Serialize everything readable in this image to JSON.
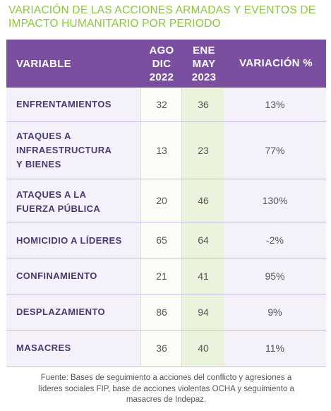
{
  "title": "VARIACIÓN DE LAS ACCIONES ARMADAS Y EVENTOS DE IMPACTO HUMANITARIO POR PERIODO",
  "header": {
    "variable": "VARIABLE",
    "period_a_line1": "AGO",
    "period_a_line2": "DIC",
    "period_a_line3": "2022",
    "period_b_line1": "ENE",
    "period_b_line2": "MAY",
    "period_b_line3": "2023",
    "variation": "VARIACIÓN %"
  },
  "rows": [
    {
      "label_lines": [
        "ENFRENTAMIENTOS"
      ],
      "a": "32",
      "b": "36",
      "v": "13%"
    },
    {
      "label_lines": [
        "ATAQUES A",
        "INFRAESTRUCTURA",
        "Y BIENES"
      ],
      "a": "13",
      "b": "23",
      "v": "77%"
    },
    {
      "label_lines": [
        "ATAQUES A LA",
        "FUERZA PÚBLICA"
      ],
      "a": "20",
      "b": "46",
      "v": "130%"
    },
    {
      "label_lines": [
        "HOMICIDIO A LÍDERES"
      ],
      "a": "65",
      "b": "64",
      "v": "-2%"
    },
    {
      "label_lines": [
        "CONFINAMIENTO"
      ],
      "a": "21",
      "b": "41",
      "v": "95%"
    },
    {
      "label_lines": [
        "DESPLAZAMIENTO"
      ],
      "a": "86",
      "b": "94",
      "v": "9%"
    },
    {
      "label_lines": [
        "MASACRES"
      ],
      "a": "36",
      "b": "40",
      "v": "11%"
    }
  ],
  "footer": {
    "line1": "Fuente: Bases de seguimiento a acciones del conflicto y agresiones a",
    "line2": "líderes sociales FIP, base de acciones violentas OCHA y seguimiento a",
    "line3": "masacres de Indepaz."
  }
}
